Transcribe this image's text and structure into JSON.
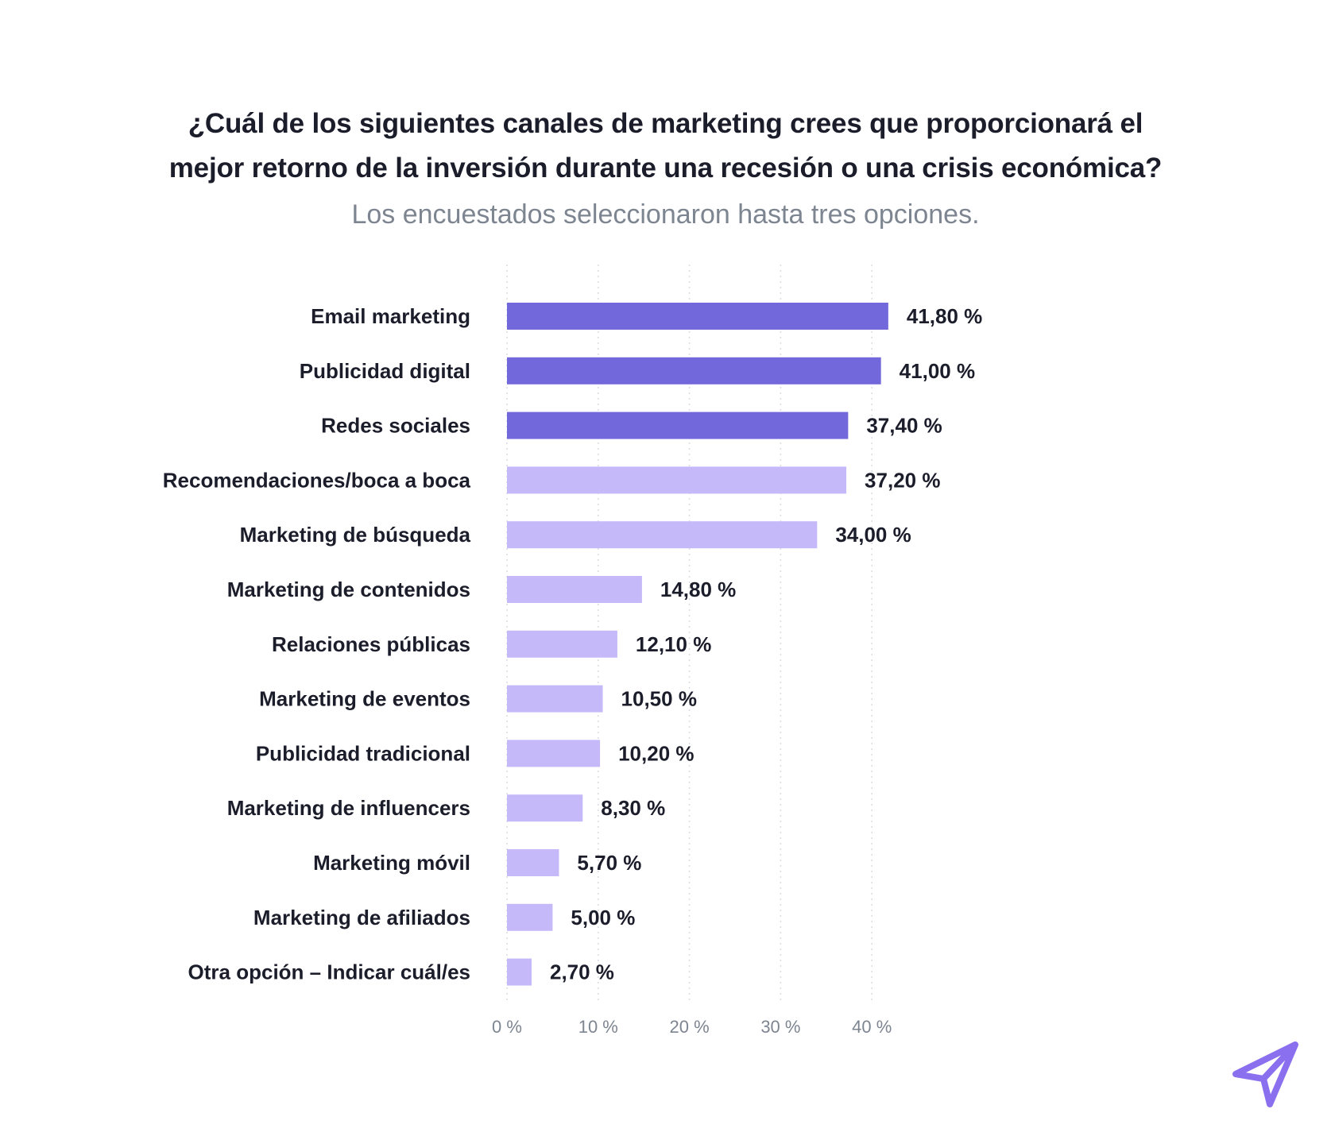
{
  "header": {
    "title_line1": "¿Cuál de los siguientes canales de marketing crees que proporcionará el",
    "title_line2": "mejor retorno de la inversión durante una recesión o una crisis económica?",
    "subtitle": "Los encuestados seleccionaron hasta tres opciones."
  },
  "colors": {
    "highlight_bar": "#7268db",
    "regular_bar": "#c6b9f9",
    "logo": "#8a70ee"
  },
  "logo": {
    "icon": "paper-plane-icon"
  },
  "chart_data": {
    "type": "bar",
    "orientation": "horizontal",
    "categories": [
      "Email marketing",
      "Publicidad digital",
      "Redes sociales",
      "Recomendaciones/boca a boca",
      "Marketing de búsqueda",
      "Marketing de contenidos",
      "Relaciones públicas",
      "Marketing de eventos",
      "Publicidad tradicional",
      "Marketing de influencers",
      "Marketing móvil",
      "Marketing de afiliados",
      "Otra opción – Indicar cuál/es"
    ],
    "values": [
      41.8,
      41.0,
      37.4,
      37.2,
      34.0,
      14.8,
      12.1,
      10.5,
      10.2,
      8.3,
      5.7,
      5.0,
      2.7
    ],
    "value_labels": [
      "41,80 %",
      "41,00 %",
      "37,40 %",
      "37,20 %",
      "34,00 %",
      "14,80 %",
      "12,10 %",
      "10,50 %",
      "10,20 %",
      "8,30 %",
      "5,70 %",
      "5,00 %",
      "2,70 %"
    ],
    "highlighted_top_n": 3,
    "x_ticks": [
      0,
      10,
      20,
      30,
      40
    ],
    "x_tick_labels": [
      "0 %",
      "10 %",
      "20 %",
      "30 %",
      "40 %"
    ],
    "xlim": [
      0,
      45
    ],
    "grid": "vertical dotted",
    "legend": "none"
  }
}
